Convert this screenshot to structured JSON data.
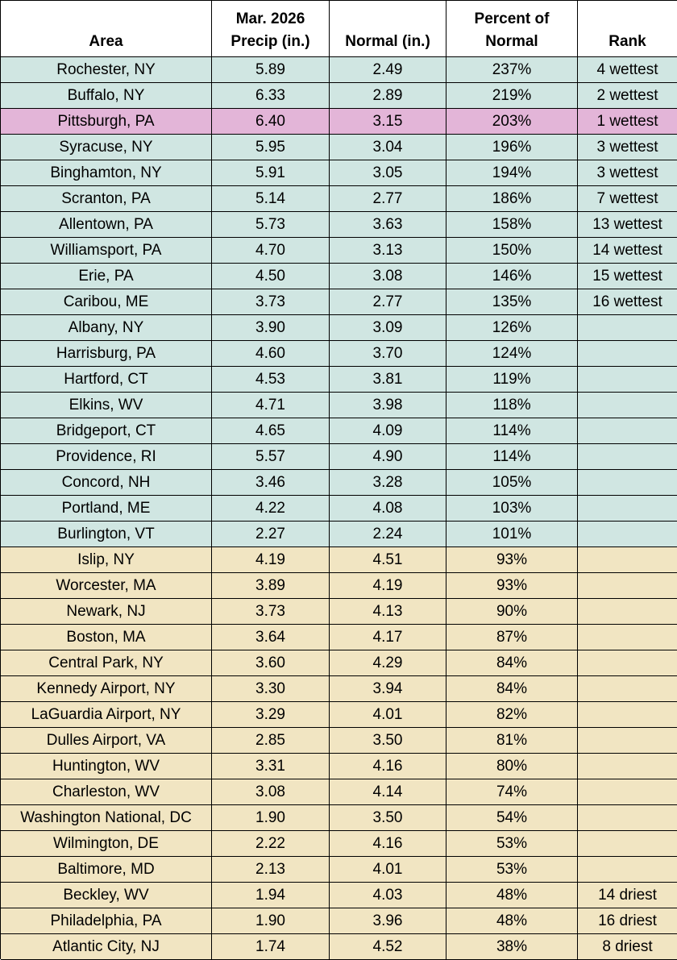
{
  "table": {
    "headers": [
      "Area",
      "Mar. 2026\nPrecip (in.)",
      "Normal (in.)",
      "Percent of\nNormal",
      "Rank"
    ],
    "rows": [
      {
        "fill": "#d0e6e2",
        "cells": [
          "Rochester, NY",
          "5.89",
          "2.49",
          "237%",
          "4 wettest"
        ]
      },
      {
        "fill": "#d0e6e2",
        "cells": [
          "Buffalo, NY",
          "6.33",
          "2.89",
          "219%",
          "2 wettest"
        ]
      },
      {
        "fill": "#e3b5d8",
        "cells": [
          "Pittsburgh, PA",
          "6.40",
          "3.15",
          "203%",
          "1 wettest"
        ]
      },
      {
        "fill": "#d0e6e2",
        "cells": [
          "Syracuse, NY",
          "5.95",
          "3.04",
          "196%",
          "3 wettest"
        ]
      },
      {
        "fill": "#d0e6e2",
        "cells": [
          "Binghamton, NY",
          "5.91",
          "3.05",
          "194%",
          "3 wettest"
        ]
      },
      {
        "fill": "#d0e6e2",
        "cells": [
          "Scranton, PA",
          "5.14",
          "2.77",
          "186%",
          "7 wettest"
        ]
      },
      {
        "fill": "#d0e6e2",
        "cells": [
          "Allentown, PA",
          "5.73",
          "3.63",
          "158%",
          "13 wettest"
        ]
      },
      {
        "fill": "#d0e6e2",
        "cells": [
          "Williamsport, PA",
          "4.70",
          "3.13",
          "150%",
          "14 wettest"
        ]
      },
      {
        "fill": "#d0e6e2",
        "cells": [
          "Erie, PA",
          "4.50",
          "3.08",
          "146%",
          "15 wettest"
        ]
      },
      {
        "fill": "#d0e6e2",
        "cells": [
          "Caribou, ME",
          "3.73",
          "2.77",
          "135%",
          "16 wettest"
        ]
      },
      {
        "fill": "#d0e6e2",
        "cells": [
          "Albany, NY",
          "3.90",
          "3.09",
          "126%"
        ]
      },
      {
        "fill": "#d0e6e2",
        "cells": [
          "Harrisburg, PA",
          "4.60",
          "3.70",
          "124%"
        ]
      },
      {
        "fill": "#d0e6e2",
        "cells": [
          "Hartford, CT",
          "4.53",
          "3.81",
          "119%"
        ]
      },
      {
        "fill": "#d0e6e2",
        "cells": [
          "Elkins, WV",
          "4.71",
          "3.98",
          "118%"
        ]
      },
      {
        "fill": "#d0e6e2",
        "cells": [
          "Bridgeport, CT",
          "4.65",
          "4.09",
          "114%"
        ]
      },
      {
        "fill": "#d0e6e2",
        "cells": [
          "Providence, RI",
          "5.57",
          "4.90",
          "114%"
        ]
      },
      {
        "fill": "#d0e6e2",
        "cells": [
          "Concord, NH",
          "3.46",
          "3.28",
          "105%"
        ]
      },
      {
        "fill": "#d0e6e2",
        "cells": [
          "Portland, ME",
          "4.22",
          "4.08",
          "103%"
        ]
      },
      {
        "fill": "#d0e6e2",
        "cells": [
          "Burlington, VT",
          "2.27",
          "2.24",
          "101%"
        ]
      },
      {
        "fill": "#f1e5c2",
        "cells": [
          "Islip, NY",
          "4.19",
          "4.51",
          "93%"
        ]
      },
      {
        "fill": "#f1e5c2",
        "cells": [
          "Worcester, MA",
          "3.89",
          "4.19",
          "93%"
        ]
      },
      {
        "fill": "#f1e5c2",
        "cells": [
          "Newark, NJ",
          "3.73",
          "4.13",
          "90%"
        ]
      },
      {
        "fill": "#f1e5c2",
        "cells": [
          "Boston, MA",
          "3.64",
          "4.17",
          "87%"
        ]
      },
      {
        "fill": "#f1e5c2",
        "cells": [
          "Central Park, NY",
          "3.60",
          "4.29",
          "84%"
        ]
      },
      {
        "fill": "#f1e5c2",
        "cells": [
          "Kennedy Airport, NY",
          "3.30",
          "3.94",
          "84%"
        ]
      },
      {
        "fill": "#f1e5c2",
        "cells": [
          "LaGuardia Airport, NY",
          "3.29",
          "4.01",
          "82%"
        ]
      },
      {
        "fill": "#f1e5c2",
        "cells": [
          "Dulles Airport, VA",
          "2.85",
          "3.50",
          "81%"
        ]
      },
      {
        "fill": "#f1e5c2",
        "cells": [
          "Huntington, WV",
          "3.31",
          "4.16",
          "80%"
        ]
      },
      {
        "fill": "#f1e5c2",
        "cells": [
          "Charleston, WV",
          "3.08",
          "4.14",
          "74%"
        ]
      },
      {
        "fill": "#f1e5c2",
        "cells": [
          "Washington National, DC",
          "1.90",
          "3.50",
          "54%"
        ]
      },
      {
        "fill": "#f1e5c2",
        "cells": [
          "Wilmington, DE",
          "2.22",
          "4.16",
          "53%"
        ]
      },
      {
        "fill": "#f1e5c2",
        "cells": [
          "Baltimore, MD",
          "2.13",
          "4.01",
          "53%"
        ]
      },
      {
        "fill": "#f1e5c2",
        "cells": [
          "Beckley, WV",
          "1.94",
          "4.03",
          "48%",
          "14 driest"
        ]
      },
      {
        "fill": "#f1e5c2",
        "cells": [
          "Philadelphia, PA",
          "1.90",
          "3.96",
          "48%",
          "16 driest"
        ]
      },
      {
        "fill": "#f1e5c2",
        "cells": [
          "Atlantic City, NJ",
          "1.74",
          "4.52",
          "38%",
          "8 driest"
        ]
      }
    ]
  }
}
